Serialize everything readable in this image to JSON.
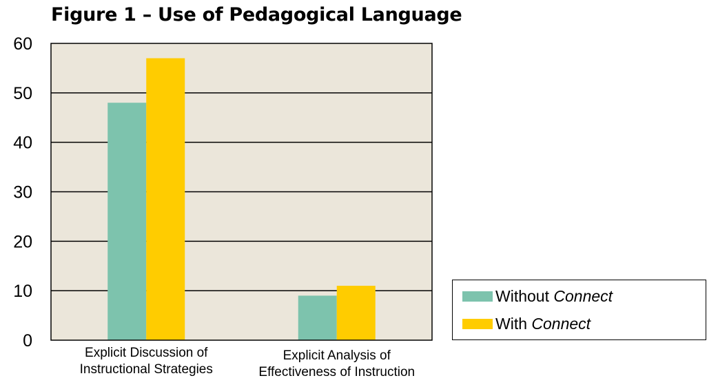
{
  "chart_data": {
    "type": "bar",
    "title": "Figure 1 – Use of Pedagogical Language",
    "categories": [
      [
        "Explicit Discussion of",
        "Instructional Strategies"
      ],
      [
        "Explicit Analysis of",
        "Effectiveness of Instruction"
      ]
    ],
    "series": [
      {
        "name": "Without Connect",
        "name_plain": "Without ",
        "name_em": "Connect",
        "color": "#7dc3ad",
        "values": [
          48,
          9
        ]
      },
      {
        "name": "With Connect",
        "name_plain": "With ",
        "name_em": "Connect",
        "color": "#ffcc00",
        "values": [
          57,
          11
        ]
      }
    ],
    "ylim": [
      0,
      60
    ],
    "yticks": [
      0,
      10,
      20,
      30,
      40,
      50,
      60
    ],
    "grid": true,
    "plot_background": "#ebe6da",
    "legend_position": "lower-right"
  }
}
